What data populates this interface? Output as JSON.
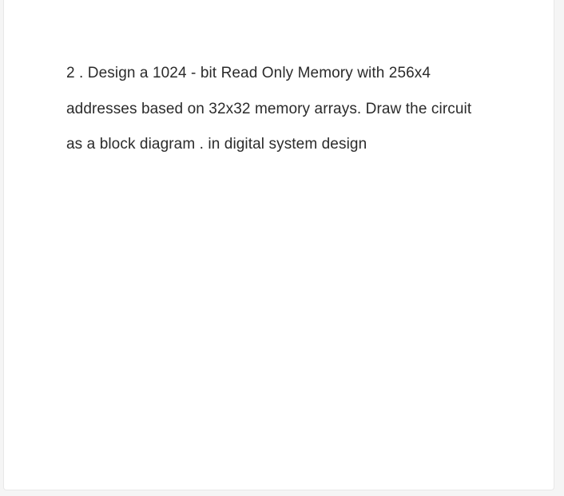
{
  "question": {
    "text": "2 .  Design a 1024 - bit Read Only Memory with 256x4 addresses based on 32x32 memory arrays. Draw the circuit as a block diagram  . in digital system design"
  },
  "styling": {
    "background_color": "#f5f5f5",
    "card_background": "#ffffff",
    "card_border_color": "#e8e8e8",
    "text_color": "#2b2b2b",
    "font_size": 19,
    "line_height": 2.35
  }
}
